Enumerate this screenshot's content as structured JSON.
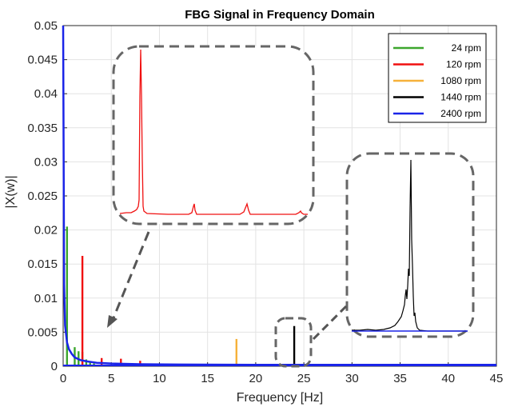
{
  "chart_data": {
    "type": "line",
    "title": "FBG Signal in Frequency Domain",
    "xlabel": "Frequency [Hz]",
    "ylabel": "|X(w)|",
    "xlim": [
      0,
      45
    ],
    "ylim": [
      0,
      0.05
    ],
    "x_ticks": [
      0,
      5,
      10,
      15,
      20,
      25,
      30,
      35,
      40,
      45
    ],
    "x_tick_labels": [
      "0",
      "5",
      "10",
      "15",
      "20",
      "25",
      "30",
      "35",
      "40",
      "45"
    ],
    "y_ticks": [
      0,
      0.005,
      0.01,
      0.015,
      0.02,
      0.025,
      0.03,
      0.035,
      0.04,
      0.045,
      0.05
    ],
    "y_tick_labels": [
      "0",
      "0.005",
      "0.01",
      "0.015",
      "0.02",
      "0.025",
      "0.03",
      "0.035",
      "0.04",
      "0.045",
      "0.05"
    ],
    "grid": true,
    "legend_position": "top-right",
    "series": [
      {
        "name": "24 rpm",
        "color": "#3ca62c",
        "x": [
          0.4,
          1.2,
          1.6,
          2.0,
          2.4,
          2.8,
          3.2
        ],
        "y": [
          0.0205,
          0.0028,
          0.0022,
          0.0021,
          0.001,
          0.0006,
          0.0004
        ]
      },
      {
        "name": "120 rpm",
        "color": "#f01010",
        "x": [
          2.0,
          4.0,
          6.0,
          8.0
        ],
        "y": [
          0.0162,
          0.0012,
          0.0011,
          0.0008
        ]
      },
      {
        "name": "1080 rpm",
        "color": "#f6b13a",
        "x": [
          18.0
        ],
        "y": [
          0.004
        ]
      },
      {
        "name": "1440 rpm",
        "color": "#000000",
        "x": [
          24.0
        ],
        "y": [
          0.0059
        ]
      },
      {
        "name": "2400 rpm",
        "color": "#1a24e8",
        "x": [
          0.0,
          0.1,
          0.2,
          0.4,
          0.6,
          0.9,
          1.2,
          1.8,
          2.5,
          3.5,
          5.0,
          8.0,
          12.0,
          20.0,
          30.0,
          40.0,
          45.0
        ],
        "y": [
          0.05,
          0.012,
          0.006,
          0.0035,
          0.0025,
          0.0018,
          0.0013,
          0.0009,
          0.0007,
          0.0005,
          0.0004,
          0.0003,
          0.00025,
          0.0002,
          0.0002,
          0.0002,
          0.0002
        ]
      }
    ],
    "annotations": [
      "zoom inset of 120 rpm spectrum",
      "zoom inset of 1440 rpm peak near 24 Hz"
    ]
  }
}
